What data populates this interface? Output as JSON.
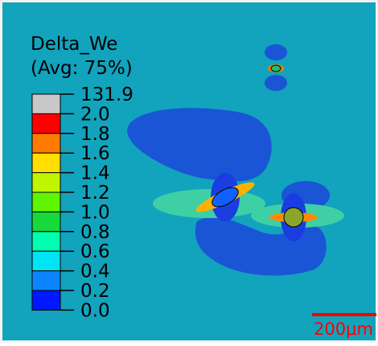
{
  "legend": {
    "title": "Delta_We",
    "subtitle": "(Avg: 75%)",
    "labels": [
      "131.9",
      "2.0",
      "1.8",
      "1.6",
      "1.4",
      "1.2",
      "1.0",
      "0.8",
      "0.6",
      "0.4",
      "0.2",
      "0.0"
    ],
    "colors": [
      "#c8c8c8",
      "#ff0000",
      "#ff7a00",
      "#ffde00",
      "#bff500",
      "#5ff500",
      "#16d93a",
      "#00ffb0",
      "#00e5f5",
      "#0a85ff",
      "#0018ff"
    ]
  },
  "scale_bar": {
    "label": "200μm"
  }
}
